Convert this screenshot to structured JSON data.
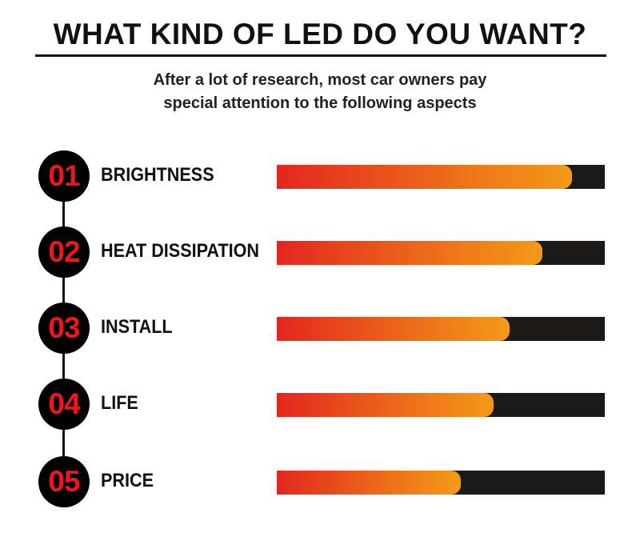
{
  "title": "WHAT KIND OF LED DO YOU WANT?",
  "subtitle_line1": "After a lot of research, most car owners pay",
  "subtitle_line2": "special attention to the following aspects",
  "colors": {
    "number": "#e8181c",
    "bar_start": "#e3261f",
    "bar_end": "#f29a17",
    "track": "#1b1a18"
  },
  "chart_data": {
    "type": "bar",
    "orientation": "horizontal",
    "title": "WHAT KIND OF LED DO YOU WANT?",
    "numbers": [
      "01",
      "02",
      "03",
      "04",
      "05"
    ],
    "categories": [
      "BRIGHTNESS",
      "HEAT DISSIPATION",
      "INSTALL",
      "LIFE",
      "PRICE"
    ],
    "values": [
      90,
      81,
      71,
      66,
      56
    ],
    "xlim": [
      0,
      100
    ],
    "grid": false
  }
}
